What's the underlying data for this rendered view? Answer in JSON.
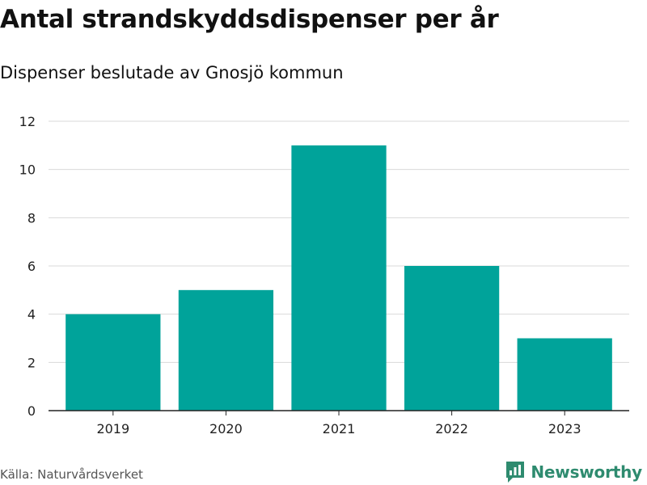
{
  "header": {
    "title": "Antal strandskyddsdispenser per år",
    "subtitle": "Dispenser beslutade av Gnosjö kommun"
  },
  "footer": {
    "source": "Källa: Naturvårdsverket",
    "brand": "Newsworthy"
  },
  "colors": {
    "bar": "#00a39a",
    "grid": "#d9d9d9",
    "axis": "#222222",
    "brand": "#2e8b6f"
  },
  "chart_data": {
    "type": "bar",
    "title": "Antal strandskyddsdispenser per år",
    "subtitle": "Dispenser beslutade av Gnosjö kommun",
    "categories": [
      "2019",
      "2020",
      "2021",
      "2022",
      "2023"
    ],
    "values": [
      4,
      5,
      11,
      6,
      3
    ],
    "xlabel": "",
    "ylabel": "",
    "ylim": [
      0,
      12
    ],
    "yticks": [
      0,
      2,
      4,
      6,
      8,
      10,
      12
    ],
    "grid": true,
    "legend": "none"
  }
}
